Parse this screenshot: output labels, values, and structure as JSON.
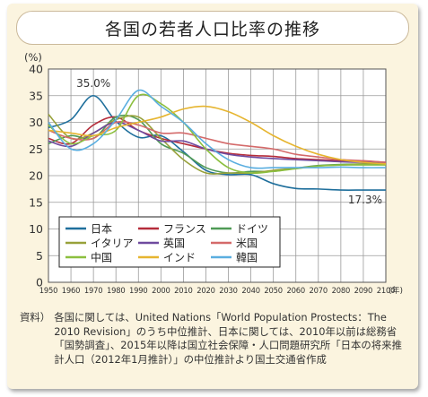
{
  "title": "各国の若者人口比率の推移",
  "source": {
    "label": "資料）",
    "text": "各国に関しては、United Nations「World Population Prostects：The 2010 Revision」のうち中位推計、日本に関しては、2010年以前は総務省「国勢調査」、2015年以降は国立社会保障・人口問題研究所「日本の将来推計人口（2012年1月推計）」の中位推計より国土交通省作成"
  },
  "chart_data": {
    "type": "line",
    "ylabel": "(%)",
    "xlabel": "(年)",
    "ylim": [
      0,
      40
    ],
    "yticks": [
      0,
      5,
      10,
      15,
      20,
      25,
      30,
      35,
      40
    ],
    "x": [
      1950,
      1960,
      1970,
      1980,
      1990,
      2000,
      2010,
      2020,
      2030,
      2040,
      2050,
      2060,
      2070,
      2080,
      2090,
      2100
    ],
    "xticks": [
      "1950",
      "1960",
      "1970",
      "1980",
      "1990",
      "2000",
      "2010",
      "2020",
      "2030",
      "2040",
      "2050",
      "2060",
      "2070",
      "2080",
      "2090",
      "2100"
    ],
    "grid": true,
    "legend_position": "bottom-left",
    "annotations": [
      {
        "text": "35.0%",
        "x": 1970,
        "y": 35.0
      },
      {
        "text": "17.3%",
        "x": 2100,
        "y": 17.3
      }
    ],
    "series": [
      {
        "name": "日本",
        "color": "#1f6f9c",
        "values": [
          29.0,
          30.5,
          35.0,
          30.2,
          27.2,
          27.5,
          24.5,
          21.0,
          20.2,
          20.2,
          18.5,
          17.6,
          17.5,
          17.3,
          17.3,
          17.3
        ]
      },
      {
        "name": "フランス",
        "color": "#b52c3a",
        "values": [
          27.0,
          26.0,
          29.5,
          31.0,
          28.5,
          27.0,
          26.0,
          25.0,
          24.2,
          23.8,
          23.6,
          23.2,
          23.0,
          22.8,
          22.6,
          22.5
        ]
      },
      {
        "name": "ドイツ",
        "color": "#4f9a56",
        "values": [
          26.0,
          27.5,
          27.0,
          31.0,
          30.5,
          26.0,
          24.2,
          21.5,
          20.5,
          20.8,
          20.8,
          21.4,
          21.9,
          22.1,
          22.2,
          22.2
        ]
      },
      {
        "name": "イタリア",
        "color": "#98a13a",
        "values": [
          31.5,
          27.0,
          28.0,
          30.5,
          31.0,
          27.0,
          23.0,
          20.5,
          20.5,
          20.5,
          21.0,
          21.4,
          21.8,
          22.0,
          22.2,
          22.3
        ]
      },
      {
        "name": "英国",
        "color": "#6f4a9e",
        "values": [
          26.5,
          25.5,
          28.0,
          30.0,
          28.5,
          26.5,
          26.5,
          25.0,
          24.0,
          23.5,
          23.2,
          23.0,
          22.8,
          22.6,
          22.5,
          22.5
        ]
      },
      {
        "name": "米国",
        "color": "#d46a6a",
        "values": [
          28.5,
          27.0,
          27.0,
          30.0,
          29.5,
          28.0,
          28.0,
          27.0,
          26.0,
          25.5,
          25.0,
          24.0,
          23.5,
          23.0,
          22.8,
          22.5
        ]
      },
      {
        "name": "中国",
        "color": "#8cbf3f",
        "values": [
          29.5,
          26.0,
          27.5,
          28.5,
          35.0,
          33.5,
          30.0,
          25.0,
          21.5,
          20.5,
          20.8,
          21.3,
          21.8,
          22.0,
          22.0,
          22.0
        ]
      },
      {
        "name": "インド",
        "color": "#e6b530",
        "values": [
          28.5,
          28.0,
          27.5,
          29.0,
          30.0,
          31.0,
          32.5,
          33.0,
          32.0,
          30.0,
          27.5,
          25.5,
          24.0,
          23.0,
          22.5,
          22.2
        ]
      },
      {
        "name": "韓国",
        "color": "#5aaee0",
        "values": [
          30.0,
          25.0,
          26.0,
          30.5,
          36.0,
          33.0,
          30.0,
          26.0,
          23.0,
          21.5,
          21.5,
          21.5,
          21.5,
          21.6,
          21.5,
          21.5
        ]
      }
    ]
  }
}
